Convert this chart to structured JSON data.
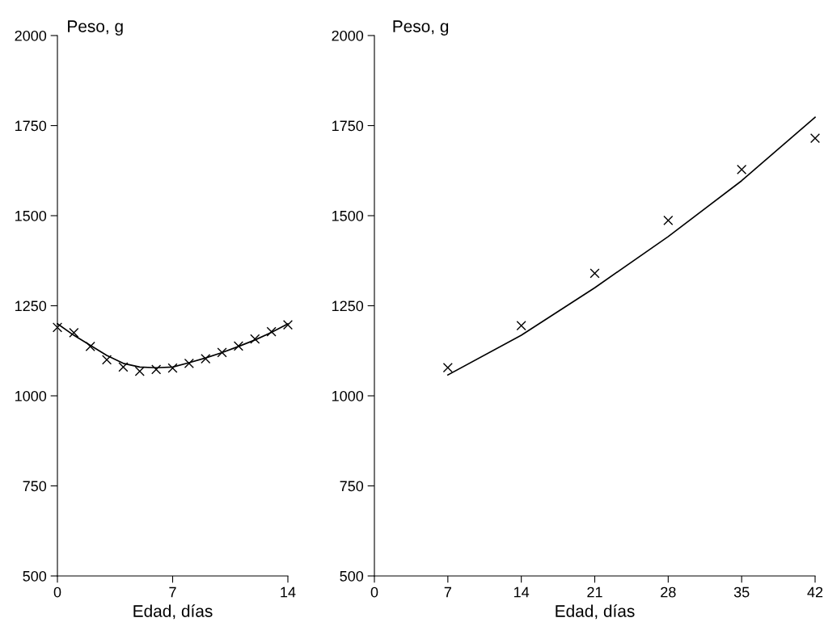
{
  "chart_data": [
    {
      "type": "scatter",
      "ylabel": "Peso, g",
      "xlabel": "Edad, días",
      "xlim": [
        0,
        14
      ],
      "xticks": [
        0,
        7,
        14
      ],
      "ylim": [
        500,
        2000
      ],
      "yticks": [
        500,
        750,
        1000,
        1250,
        1500,
        1750,
        2000
      ],
      "grid": false,
      "legend": false,
      "series": [
        {
          "marker": "cross",
          "color": "#000000",
          "x": [
            0,
            1,
            2,
            3,
            4,
            5,
            6,
            7,
            8,
            9,
            10,
            11,
            12,
            13,
            14
          ],
          "values": [
            1190,
            1175,
            1137,
            1100,
            1080,
            1068,
            1073,
            1077,
            1090,
            1103,
            1120,
            1138,
            1158,
            1178,
            1197
          ]
        },
        {
          "type": "line",
          "marker": "none",
          "line_style": "solid",
          "color": "#000000",
          "x": [
            0,
            1,
            2,
            3,
            4,
            5,
            6,
            7,
            8,
            9,
            10,
            11,
            12,
            13,
            14
          ],
          "values": [
            1200,
            1168,
            1140,
            1112,
            1090,
            1080,
            1078,
            1080,
            1092,
            1105,
            1120,
            1137,
            1155,
            1176,
            1200
          ]
        }
      ]
    },
    {
      "type": "scatter",
      "ylabel": "Peso, g",
      "xlabel": "Edad, días",
      "xlim": [
        0,
        42
      ],
      "xticks": [
        0,
        7,
        14,
        21,
        28,
        35,
        42
      ],
      "ylim": [
        500,
        2000
      ],
      "yticks": [
        500,
        750,
        1000,
        1250,
        1500,
        1750,
        2000
      ],
      "grid": false,
      "legend": false,
      "series": [
        {
          "marker": "cross",
          "color": "#000000",
          "x": [
            7,
            14,
            21,
            28,
            35,
            42
          ],
          "values": [
            1078,
            1195,
            1340,
            1487,
            1628,
            1715
          ]
        },
        {
          "type": "line",
          "marker": "none",
          "line_style": "solid",
          "color": "#000000",
          "x": [
            7,
            14,
            21,
            28,
            35,
            42
          ],
          "values": [
            1058,
            1168,
            1300,
            1442,
            1597,
            1773
          ]
        }
      ]
    }
  ]
}
